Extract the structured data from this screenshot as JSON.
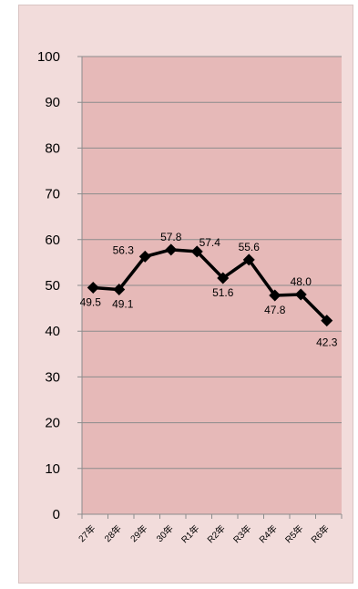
{
  "chart_data": {
    "type": "line",
    "categories": [
      "27年",
      "28年",
      "29年",
      "30年",
      "R1年",
      "R2年",
      "R3年",
      "R4年",
      "R5年",
      "R6年"
    ],
    "series": [
      {
        "values": [
          49.5,
          49.1,
          56.3,
          57.8,
          57.4,
          51.6,
          55.6,
          47.8,
          48.0,
          42.3
        ]
      }
    ],
    "data_labels": [
      "49.5",
      "49.1",
      "56.3",
      "57.8",
      "57.4",
      "51.6",
      "55.6",
      "47.8",
      "48.0",
      "42.3"
    ],
    "ylim": [
      0,
      100
    ],
    "ytick_labels": [
      "0",
      "10",
      "20",
      "30",
      "40",
      "50",
      "60",
      "70",
      "80",
      "90",
      "100"
    ],
    "grid": true,
    "colors": {
      "outer_background": "#f2dcdb",
      "plot_area": "#e6b9b8",
      "line": "#000000",
      "gridline": "#8c8c8c",
      "highlight_label": "#2e75b6"
    }
  }
}
